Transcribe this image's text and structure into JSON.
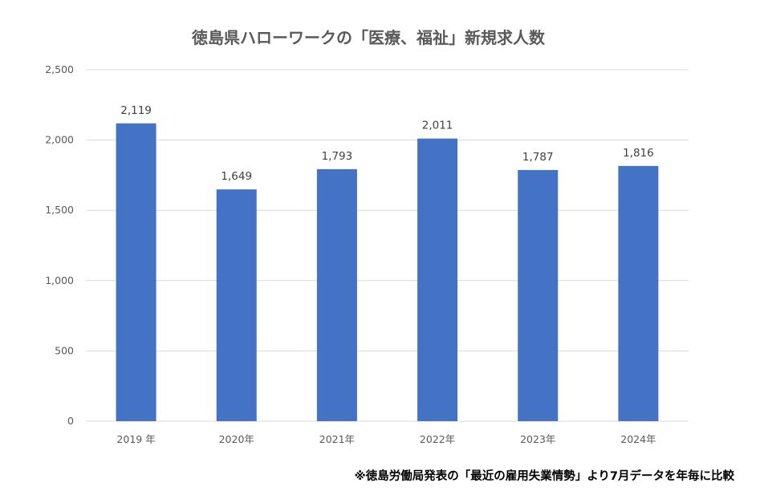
{
  "chart_data": {
    "type": "bar",
    "title": "徳島県ハローワークの「医療、福祉」新規求人数",
    "categories": [
      "2019 年",
      "2020年",
      "2021年",
      "2022年",
      "2023年",
      "2024年"
    ],
    "values": [
      2119,
      1649,
      1793,
      2011,
      1787,
      1816
    ],
    "data_labels": [
      "2,119",
      "1,649",
      "1,793",
      "2,011",
      "1,787",
      "1,816"
    ],
    "yticks": [
      0,
      500,
      1000,
      1500,
      2000,
      2500
    ],
    "ytick_labels": [
      "0",
      "500",
      "1,000",
      "1,500",
      "2,000",
      "2,500"
    ],
    "ylim": [
      0,
      2500
    ],
    "xlabel": "",
    "ylabel": "",
    "grid": true,
    "legend": "none",
    "bar_color": "#4472c4"
  },
  "footnote": "※徳島労働局発表の「最近の雇用失業情勢」より7月データを年毎に比較"
}
